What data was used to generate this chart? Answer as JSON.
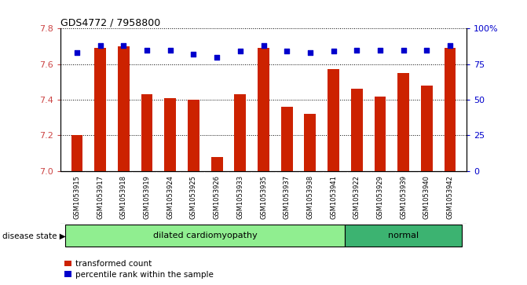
{
  "title": "GDS4772 / 7958800",
  "samples": [
    "GSM1053915",
    "GSM1053917",
    "GSM1053918",
    "GSM1053919",
    "GSM1053924",
    "GSM1053925",
    "GSM1053926",
    "GSM1053933",
    "GSM1053935",
    "GSM1053937",
    "GSM1053938",
    "GSM1053941",
    "GSM1053922",
    "GSM1053929",
    "GSM1053939",
    "GSM1053940",
    "GSM1053942"
  ],
  "bar_values": [
    7.2,
    7.69,
    7.7,
    7.43,
    7.41,
    7.4,
    7.08,
    7.43,
    7.69,
    7.36,
    7.32,
    7.57,
    7.46,
    7.42,
    7.55,
    7.48,
    7.69
  ],
  "percentile_values": [
    83,
    88,
    88,
    85,
    85,
    82,
    80,
    84,
    88,
    84,
    83,
    84,
    85,
    85,
    85,
    85,
    88
  ],
  "disease_groups": [
    {
      "label": "dilated cardiomyopathy",
      "start": 0,
      "end": 11,
      "color": "#90EE90"
    },
    {
      "label": "normal",
      "start": 12,
      "end": 16,
      "color": "#3CB371"
    }
  ],
  "ylim_left": [
    7.0,
    7.8
  ],
  "ylim_right": [
    0,
    100
  ],
  "yticks_left": [
    7.0,
    7.2,
    7.4,
    7.6,
    7.8
  ],
  "yticks_right": [
    0,
    25,
    50,
    75,
    100
  ],
  "bar_color": "#CC2200",
  "dot_color": "#0000CC",
  "background_color": "#ffffff",
  "bar_width": 0.5,
  "legend_labels": [
    "transformed count",
    "percentile rank within the sample"
  ],
  "legend_colors": [
    "#CC2200",
    "#0000CC"
  ],
  "disease_label": "disease state",
  "label_bg_color": "#C8C8C8",
  "left_axis_color": "#CC4444",
  "right_axis_color": "#0000CC"
}
